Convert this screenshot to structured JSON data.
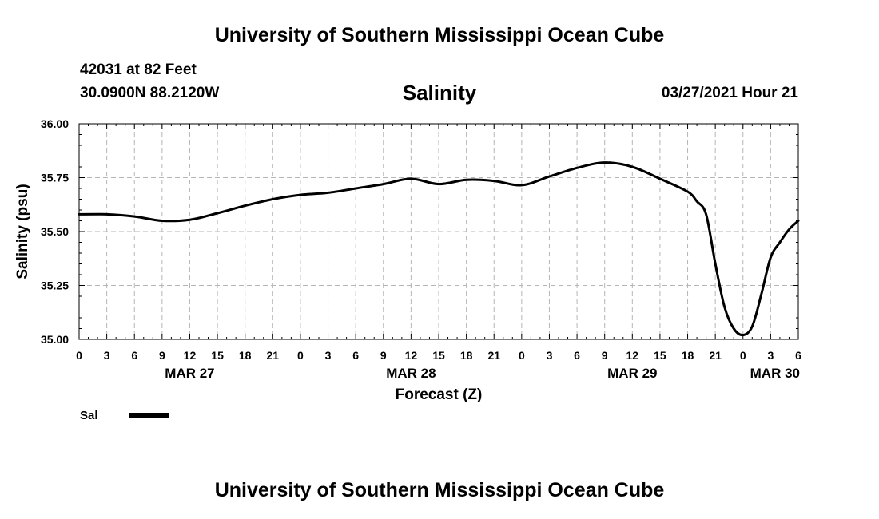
{
  "header": {
    "title": "University of Southern Mississippi Ocean Cube",
    "station_line": "42031 at 82 Feet",
    "coords_line": "30.0900N  88.2120W",
    "parameter": "Salinity",
    "datetime": "03/27/2021 Hour 21"
  },
  "footer": {
    "title": "University of Southern Mississippi Ocean Cube"
  },
  "chart_data": {
    "type": "line",
    "title": "Salinity",
    "xlabel": "Forecast (Z)",
    "ylabel": "Salinity (psu)",
    "ylim": [
      35.0,
      36.0
    ],
    "y_ticks": [
      "35.00",
      "35.25",
      "35.50",
      "35.75",
      "36.00"
    ],
    "x_range_hours": [
      0,
      78
    ],
    "x_tick_labels": [
      "0",
      "3",
      "6",
      "9",
      "12",
      "15",
      "18",
      "21",
      "0",
      "3",
      "6",
      "9",
      "12",
      "15",
      "18",
      "21",
      "0",
      "3",
      "6",
      "9",
      "12",
      "15",
      "18",
      "21",
      "0",
      "3",
      "6"
    ],
    "date_labels": [
      {
        "label": "MAR 27",
        "hour": 12
      },
      {
        "label": "MAR 28",
        "hour": 36
      },
      {
        "label": "MAR 29",
        "hour": 60
      },
      {
        "label": "MAR 30",
        "hour": 78
      }
    ],
    "grid": true,
    "legend": "bottom-left",
    "series": [
      {
        "name": "Sal",
        "color": "#000000",
        "x": [
          0,
          3,
          6,
          9,
          12,
          15,
          18,
          21,
          24,
          27,
          30,
          33,
          36,
          39,
          42,
          45,
          48,
          51,
          54,
          57,
          60,
          63,
          66,
          67,
          68,
          69,
          70,
          71,
          72,
          73,
          74,
          75,
          76,
          77,
          78
        ],
        "y": [
          35.58,
          35.58,
          35.57,
          35.55,
          35.555,
          35.585,
          35.62,
          35.65,
          35.67,
          35.68,
          35.7,
          35.72,
          35.745,
          35.72,
          35.74,
          35.735,
          35.715,
          35.755,
          35.795,
          35.82,
          35.8,
          35.745,
          35.685,
          35.64,
          35.58,
          35.35,
          35.15,
          35.05,
          35.02,
          35.06,
          35.21,
          35.38,
          35.45,
          35.51,
          35.55
        ]
      }
    ]
  }
}
